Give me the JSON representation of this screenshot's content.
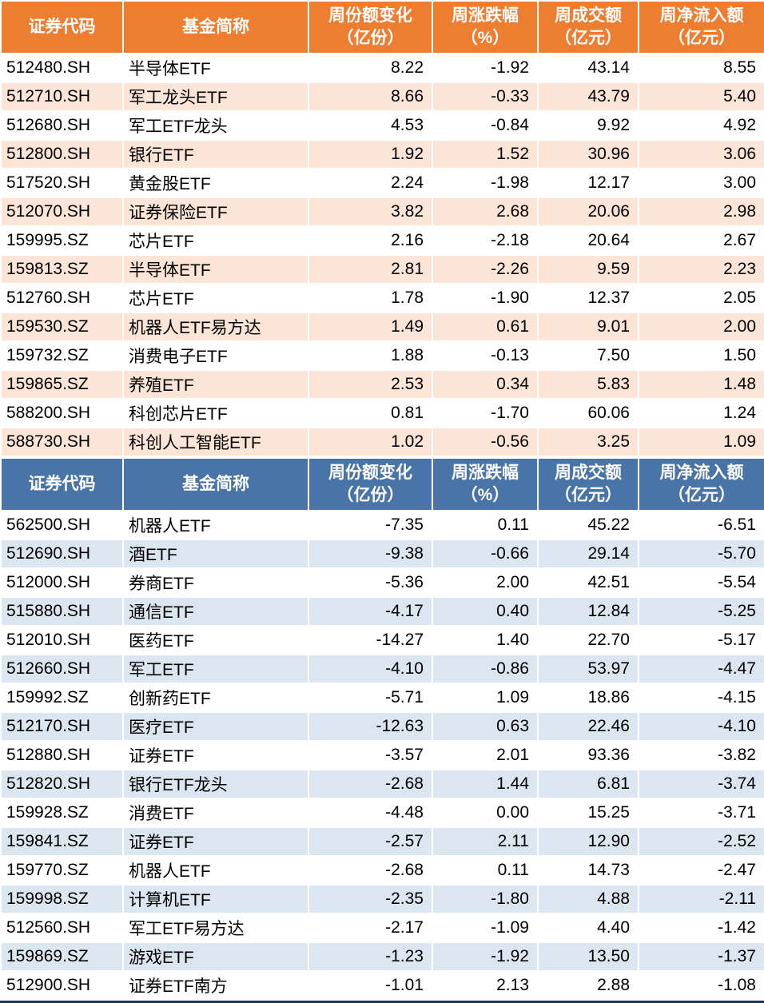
{
  "colors": {
    "orange_header": "#ED7D31",
    "orange_row": "#FCE4D6",
    "blue_header": "#4874A8",
    "blue_row": "#DCE6F1",
    "grid_line": "#FFFFFF",
    "bottom_border": "#16365C"
  },
  "chart_data": [
    {
      "type": "table",
      "theme": "orange",
      "columns": [
        {
          "label": "证券代码",
          "sub": ""
        },
        {
          "label": "基金简称",
          "sub": ""
        },
        {
          "label": "周份额变化",
          "sub": "（亿份）"
        },
        {
          "label": "周涨跌幅",
          "sub": "（%）"
        },
        {
          "label": "周成交额",
          "sub": "（亿元）"
        },
        {
          "label": "周净流入额",
          "sub": "（亿元）"
        }
      ],
      "rows": [
        [
          "512480.SH",
          "半导体ETF",
          "8.22",
          "-1.92",
          "43.14",
          "8.55"
        ],
        [
          "512710.SH",
          "军工龙头ETF",
          "8.66",
          "-0.33",
          "43.79",
          "5.40"
        ],
        [
          "512680.SH",
          "军工ETF龙头",
          "4.53",
          "-0.84",
          "9.92",
          "4.92"
        ],
        [
          "512800.SH",
          "银行ETF",
          "1.92",
          "1.52",
          "30.96",
          "3.06"
        ],
        [
          "517520.SH",
          "黄金股ETF",
          "2.24",
          "-1.98",
          "12.17",
          "3.00"
        ],
        [
          "512070.SH",
          "证券保险ETF",
          "3.82",
          "2.68",
          "20.06",
          "2.98"
        ],
        [
          "159995.SZ",
          "芯片ETF",
          "2.16",
          "-2.18",
          "20.64",
          "2.67"
        ],
        [
          "159813.SZ",
          "半导体ETF",
          "2.81",
          "-2.26",
          "9.59",
          "2.23"
        ],
        [
          "512760.SH",
          "芯片ETF",
          "1.78",
          "-1.90",
          "12.37",
          "2.05"
        ],
        [
          "159530.SZ",
          "机器人ETF易方达",
          "1.49",
          "0.61",
          "9.01",
          "2.00"
        ],
        [
          "159732.SZ",
          "消费电子ETF",
          "1.88",
          "-0.13",
          "7.50",
          "1.50"
        ],
        [
          "159865.SZ",
          "养殖ETF",
          "2.53",
          "0.34",
          "5.83",
          "1.48"
        ],
        [
          "588200.SH",
          "科创芯片ETF",
          "0.81",
          "-1.70",
          "60.06",
          "1.24"
        ],
        [
          "588730.SH",
          "科创人工智能ETF",
          "1.02",
          "-0.56",
          "3.25",
          "1.09"
        ]
      ]
    },
    {
      "type": "table",
      "theme": "blue",
      "columns": [
        {
          "label": "证券代码",
          "sub": ""
        },
        {
          "label": "基金简称",
          "sub": ""
        },
        {
          "label": "周份额变化",
          "sub": "（亿份）"
        },
        {
          "label": "周涨跌幅",
          "sub": "（%）"
        },
        {
          "label": "周成交额",
          "sub": "（亿元）"
        },
        {
          "label": "周净流入额",
          "sub": "（亿元）"
        }
      ],
      "rows": [
        [
          "562500.SH",
          "机器人ETF",
          "-7.35",
          "0.11",
          "45.22",
          "-6.51"
        ],
        [
          "512690.SH",
          "酒ETF",
          "-9.38",
          "-0.66",
          "29.14",
          "-5.70"
        ],
        [
          "512000.SH",
          "券商ETF",
          "-5.36",
          "2.00",
          "42.51",
          "-5.54"
        ],
        [
          "515880.SH",
          "通信ETF",
          "-4.17",
          "0.40",
          "12.84",
          "-5.25"
        ],
        [
          "512010.SH",
          "医药ETF",
          "-14.27",
          "1.40",
          "22.70",
          "-5.17"
        ],
        [
          "512660.SH",
          "军工ETF",
          "-4.10",
          "-0.86",
          "53.97",
          "-4.47"
        ],
        [
          "159992.SZ",
          "创新药ETF",
          "-5.71",
          "1.09",
          "18.86",
          "-4.15"
        ],
        [
          "512170.SH",
          "医疗ETF",
          "-12.63",
          "0.63",
          "22.46",
          "-4.10"
        ],
        [
          "512880.SH",
          "证券ETF",
          "-3.57",
          "2.01",
          "93.36",
          "-3.82"
        ],
        [
          "512820.SH",
          "银行ETF龙头",
          "-2.68",
          "1.44",
          "6.81",
          "-3.74"
        ],
        [
          "159928.SZ",
          "消费ETF",
          "-4.48",
          "0.00",
          "15.25",
          "-3.71"
        ],
        [
          "159841.SZ",
          "证券ETF",
          "-2.57",
          "2.11",
          "12.90",
          "-2.52"
        ],
        [
          "159770.SZ",
          "机器人ETF",
          "-2.68",
          "0.11",
          "14.73",
          "-2.47"
        ],
        [
          "159998.SZ",
          "计算机ETF",
          "-2.35",
          "-1.80",
          "4.88",
          "-2.11"
        ],
        [
          "512560.SH",
          "军工ETF易方达",
          "-2.17",
          "-1.09",
          "4.40",
          "-1.42"
        ],
        [
          "159869.SZ",
          "游戏ETF",
          "-1.23",
          "-1.92",
          "13.50",
          "-1.37"
        ],
        [
          "512900.SH",
          "证券ETF南方",
          "-1.01",
          "2.13",
          "2.88",
          "-1.08"
        ]
      ]
    }
  ]
}
